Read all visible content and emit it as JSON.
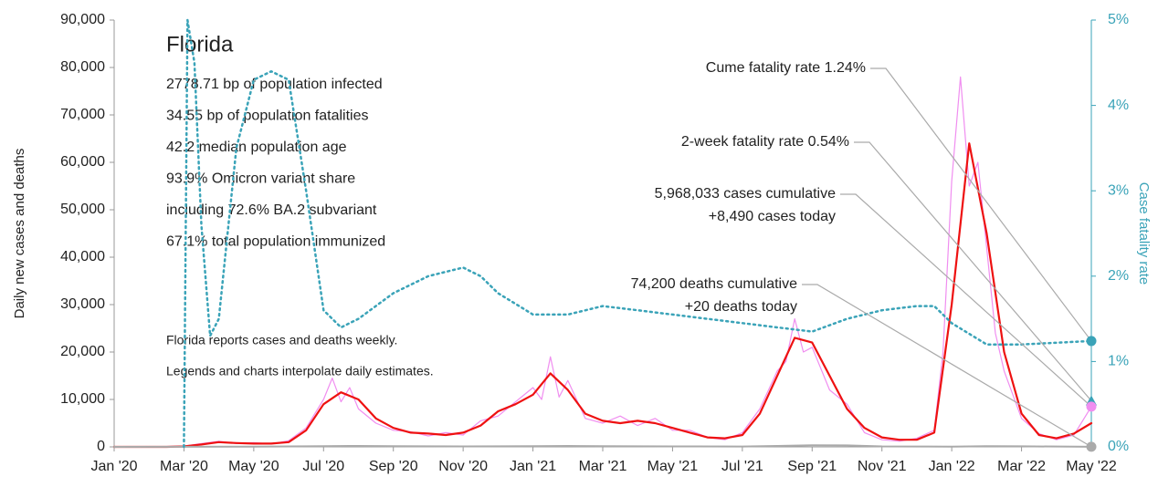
{
  "chart_data": {
    "type": "line",
    "title": "Florida",
    "info_lines": [
      "2778.71 bp of population infected",
      "34.55 bp of population fatalities",
      "42.2 median population age",
      "93.9% Omicron variant share",
      "including 72.6% BA.2 subvariant",
      "67.1% total population immunized"
    ],
    "notes": [
      "Florida reports cases and deaths weekly.",
      "Legends and charts interpolate daily estimates."
    ],
    "y_label": "Daily new cases and deaths",
    "y2_label": "Case fatality rate",
    "xlim": [
      0,
      28
    ],
    "xticks": [
      {
        "value": 0,
        "label": "Jan '20"
      },
      {
        "value": 2,
        "label": "Mar '20"
      },
      {
        "value": 4,
        "label": "May '20"
      },
      {
        "value": 6,
        "label": "Jul '20"
      },
      {
        "value": 8,
        "label": "Sep '20"
      },
      {
        "value": 10,
        "label": "Nov '20"
      },
      {
        "value": 12,
        "label": "Jan '21"
      },
      {
        "value": 14,
        "label": "Mar '21"
      },
      {
        "value": 16,
        "label": "May '21"
      },
      {
        "value": 18,
        "label": "Jul '21"
      },
      {
        "value": 20,
        "label": "Sep '21"
      },
      {
        "value": 22,
        "label": "Nov '21"
      },
      {
        "value": 24,
        "label": "Jan '22"
      },
      {
        "value": 26,
        "label": "Mar '22"
      },
      {
        "value": 28,
        "label": "May '22"
      }
    ],
    "ylim": [
      0,
      90000
    ],
    "yticks": [
      0,
      {
        "value": 10000,
        "label": "10,000"
      },
      {
        "value": 20000,
        "label": "20,000"
      },
      {
        "value": 30000,
        "label": "30,000"
      },
      {
        "value": 40000,
        "label": "40,000"
      },
      {
        "value": 50000,
        "label": "50,000"
      },
      {
        "value": 60000,
        "label": "60,000"
      },
      {
        "value": 70000,
        "label": "70,000"
      },
      {
        "value": 80000,
        "label": "80,000"
      },
      {
        "value": 90000,
        "label": "90,000"
      }
    ],
    "y2lim": [
      0,
      5
    ],
    "y2ticks": [
      {
        "value": 0,
        "label": "0%"
      },
      {
        "value": 1,
        "label": "1%"
      },
      {
        "value": 2,
        "label": "2%"
      },
      {
        "value": 3,
        "label": "3%"
      },
      {
        "value": 4,
        "label": "4%"
      },
      {
        "value": 5,
        "label": "5%"
      }
    ],
    "series": [
      {
        "color": "#f08ef0",
        "width": 1.2,
        "x": [
          0,
          1,
          2,
          2.5,
          3,
          3.5,
          4,
          4.5,
          5,
          5.5,
          6,
          6.25,
          6.5,
          6.75,
          7,
          7.5,
          8,
          8.5,
          9,
          9.5,
          10,
          10.5,
          11,
          11.5,
          12,
          12.25,
          12.5,
          12.75,
          13,
          13.5,
          14,
          14.5,
          15,
          15.5,
          16,
          16.5,
          17,
          17.5,
          18,
          18.5,
          19,
          19.25,
          19.5,
          19.75,
          20,
          20.5,
          21,
          21.5,
          22,
          22.5,
          23,
          23.5,
          23.75,
          24,
          24.25,
          24.5,
          24.75,
          25,
          25.25,
          25.5,
          26,
          26.5,
          27,
          27.5,
          28
        ],
        "values": [
          0,
          0,
          150,
          700,
          1200,
          700,
          900,
          600,
          1300,
          4000,
          10000,
          14500,
          9500,
          12500,
          8000,
          5000,
          3500,
          3200,
          2300,
          3000,
          2500,
          5500,
          6500,
          9500,
          12500,
          10000,
          19000,
          10500,
          14000,
          6000,
          5000,
          6500,
          4500,
          6000,
          3500,
          3500,
          2000,
          1500,
          3000,
          8000,
          16000,
          18000,
          27000,
          20000,
          21000,
          12000,
          9000,
          3000,
          1500,
          1200,
          1800,
          3500,
          20000,
          56000,
          78000,
          55000,
          60000,
          42000,
          24000,
          16000,
          6000,
          2800,
          1500,
          2500,
          8490
        ]
      },
      {
        "color": "#ee1111",
        "width": 2.2,
        "x": [
          0,
          0.5,
          1,
          1.5,
          2,
          2.5,
          3,
          3.5,
          4,
          4.5,
          5,
          5.5,
          6,
          6.5,
          7,
          7.5,
          8,
          8.5,
          9,
          9.5,
          10,
          10.5,
          11,
          11.5,
          12,
          12.5,
          13,
          13.5,
          14,
          14.5,
          15,
          15.5,
          16,
          16.5,
          17,
          17.5,
          18,
          18.5,
          19,
          19.5,
          20,
          20.5,
          21,
          21.5,
          22,
          22.5,
          23,
          23.5,
          24,
          24.5,
          25,
          25.5,
          26,
          26.5,
          27,
          27.5,
          28
        ],
        "values": [
          0,
          0,
          0,
          0,
          100,
          500,
          1000,
          800,
          700,
          700,
          1000,
          3500,
          9000,
          11500,
          10000,
          6000,
          4000,
          3000,
          2800,
          2500,
          3000,
          4500,
          7500,
          9000,
          11000,
          15500,
          12000,
          7000,
          5500,
          5000,
          5500,
          5000,
          4000,
          3000,
          2000,
          1800,
          2500,
          7000,
          15000,
          23000,
          22000,
          15000,
          8000,
          4000,
          2000,
          1500,
          1500,
          3000,
          30000,
          64000,
          45000,
          20000,
          7000,
          2500,
          1800,
          2800,
          5000
        ]
      },
      {
        "color": "#aaaaaa",
        "width": 2,
        "x": [
          0,
          2,
          4,
          6,
          7,
          8,
          10,
          12,
          13,
          14,
          16,
          18,
          19,
          20,
          21,
          22,
          24,
          25,
          26,
          28
        ],
        "values": [
          0,
          10,
          50,
          150,
          200,
          150,
          100,
          150,
          200,
          150,
          100,
          80,
          200,
          350,
          300,
          100,
          60,
          150,
          120,
          20
        ]
      },
      {
        "axis": "y2",
        "color": "#3aa3b8",
        "width": 2.5,
        "dash": true,
        "x": [
          2,
          2.1,
          2.3,
          2.5,
          2.75,
          3,
          3.5,
          4,
          4.5,
          5,
          5.5,
          6,
          6.5,
          7,
          8,
          9,
          10,
          10.5,
          11,
          12,
          13,
          14,
          15,
          16,
          17,
          18,
          19,
          20,
          21,
          22,
          23,
          23.5,
          24,
          25,
          26,
          27,
          28
        ],
        "values": [
          0,
          5,
          4.5,
          2.6,
          1.3,
          1.5,
          3.5,
          4.3,
          4.4,
          4.3,
          3.0,
          1.6,
          1.4,
          1.5,
          1.8,
          2.0,
          2.1,
          2.0,
          1.8,
          1.55,
          1.55,
          1.65,
          1.6,
          1.55,
          1.5,
          1.45,
          1.4,
          1.35,
          1.5,
          1.6,
          1.65,
          1.65,
          1.45,
          1.2,
          1.2,
          1.22,
          1.24
        ]
      }
    ],
    "annotations": [
      {
        "lines": [
          "Cume fatality rate 1.24%"
        ],
        "value": 1.24,
        "axis": "y2",
        "color": "#3aa3b8",
        "marker": "circle"
      },
      {
        "lines": [
          "2-week fatality rate 0.54%"
        ],
        "value": 0.54,
        "axis": "y2",
        "color": "#3aa3b8",
        "marker": "triangle"
      },
      {
        "lines": [
          "5,968,033 cases cumulative",
          "+8,490 cases today"
        ],
        "value": 8490,
        "axis": "y",
        "color": "#f08ef0",
        "marker": "circle"
      },
      {
        "lines": [
          "74,200 deaths cumulative",
          "+20 deaths today"
        ],
        "value": 20,
        "axis": "y",
        "color": "#aaaaaa",
        "marker": "circle"
      }
    ]
  }
}
